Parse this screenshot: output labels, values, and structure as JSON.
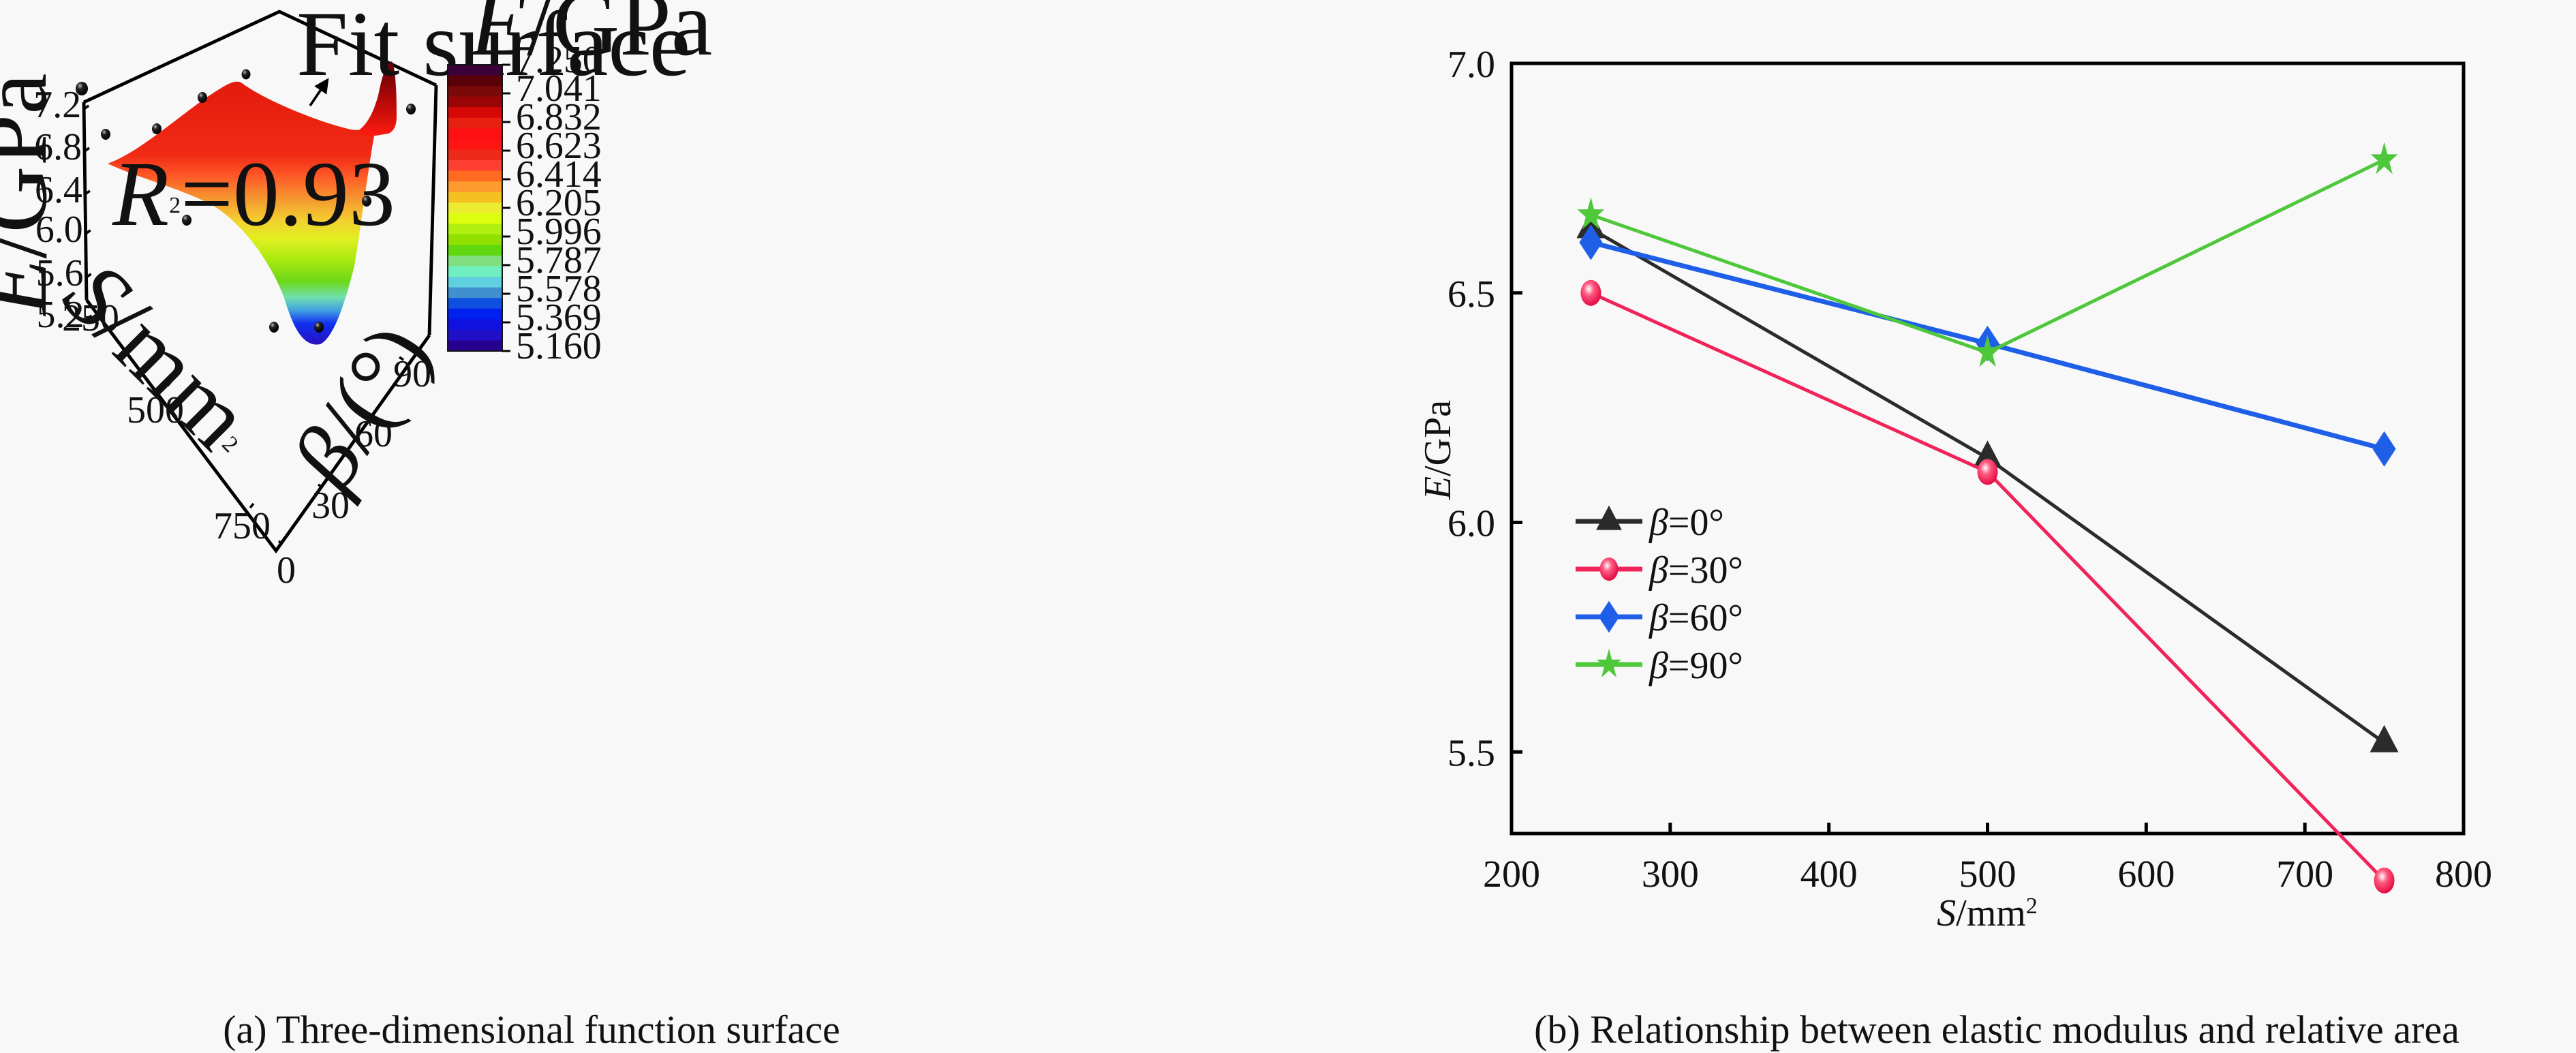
{
  "captions": {
    "a": "(a) Three-dimensional function surface",
    "b": "(b) Relationship between elastic modulus and relative area"
  },
  "chart_data": [
    {
      "type": "surface3d",
      "title": "(a) Three-dimensional function surface",
      "annotation_fit": "Fit surface",
      "annotation_r2": {
        "prefix": "R",
        "sup": "2",
        "value": "=0.93"
      },
      "zlabel": {
        "italic": "E",
        "rest": "/GPa"
      },
      "xlabel": {
        "italic": "S",
        "rest": "/mm",
        "sup": "2"
      },
      "ylabel": {
        "italic": "β",
        "rest": "/(°)"
      },
      "z_ticks": [
        "5.2",
        "5.6",
        "6.0",
        "6.4",
        "6.8",
        "7.2"
      ],
      "x_ticks": [
        "250",
        "500",
        "750"
      ],
      "y_ticks": [
        "0",
        "30",
        "60",
        "90"
      ],
      "colorbar": {
        "title": {
          "italic": "E",
          "rest": "/GPa"
        },
        "ticks": [
          "7.250",
          "7.041",
          "6.832",
          "6.623",
          "6.414",
          "6.205",
          "5.996",
          "5.787",
          "5.578",
          "5.369",
          "5.160"
        ],
        "range": [
          5.16,
          7.25
        ],
        "colors": [
          "#3a003a",
          "#5a0008",
          "#7a0a0a",
          "#9a0606",
          "#d80808",
          "#e82010",
          "#ff1010",
          "#ff1414",
          "#ee2a18",
          "#ff4030",
          "#ff6a20",
          "#ff9a30",
          "#f5c020",
          "#ecec30",
          "#dcff10",
          "#b0f010",
          "#90e000",
          "#60d810",
          "#80e080",
          "#70f0c0",
          "#60d0e0",
          "#4090d0",
          "#1050e0",
          "#0020f0",
          "#1010e0",
          "#2010c8",
          "#280090"
        ]
      },
      "points": [
        {
          "S": 250,
          "beta": 0,
          "E": 6.64
        },
        {
          "S": 250,
          "beta": 30,
          "E": 6.5
        },
        {
          "S": 250,
          "beta": 60,
          "E": 6.61
        },
        {
          "S": 250,
          "beta": 90,
          "E": 6.67
        },
        {
          "S": 500,
          "beta": 0,
          "E": 6.14
        },
        {
          "S": 500,
          "beta": 30,
          "E": 6.11
        },
        {
          "S": 500,
          "beta": 60,
          "E": 6.39
        },
        {
          "S": 500,
          "beta": 90,
          "E": 6.37
        },
        {
          "S": 750,
          "beta": 0,
          "E": 5.52
        },
        {
          "S": 750,
          "beta": 30,
          "E": 5.22
        },
        {
          "S": 750,
          "beta": 60,
          "E": 6.16
        },
        {
          "S": 750,
          "beta": 90,
          "E": 6.79
        }
      ],
      "r2": 0.93
    },
    {
      "type": "line",
      "title": "(b) Relationship between elastic modulus and relative area",
      "xlabel": {
        "italic": "S",
        "rest": "/mm",
        "sup": "2"
      },
      "ylabel": {
        "italic": "E",
        "rest": "/GPa"
      },
      "xlim": [
        200,
        800
      ],
      "ylim": [
        5.1,
        7.0
      ],
      "x_ticks": [
        200,
        300,
        400,
        500,
        600,
        700,
        800
      ],
      "y_ticks": [
        5.5,
        6.0,
        6.5,
        7.0
      ],
      "y_tick_labels": [
        "5.5",
        "6.0",
        "6.5",
        "7.0"
      ],
      "x": [
        250,
        500,
        750
      ],
      "legend_position": "left-middle",
      "series": [
        {
          "name": "β=0°",
          "greek": "β",
          "rest": "=0°",
          "color": "#2b2b2b",
          "marker": "triangle",
          "values": [
            6.64,
            6.14,
            5.52
          ]
        },
        {
          "name": "β=30°",
          "greek": "β",
          "rest": "=30°",
          "color": "#f0245a",
          "marker": "circle",
          "values": [
            6.5,
            6.11,
            5.22
          ]
        },
        {
          "name": "β=60°",
          "greek": "β",
          "rest": "=60°",
          "color": "#1f5fe8",
          "marker": "diamond",
          "values": [
            6.61,
            6.39,
            6.16
          ]
        },
        {
          "name": "β=90°",
          "greek": "β",
          "rest": "=90°",
          "color": "#4ec83a",
          "marker": "star",
          "values": [
            6.67,
            6.37,
            6.79
          ]
        }
      ]
    }
  ]
}
